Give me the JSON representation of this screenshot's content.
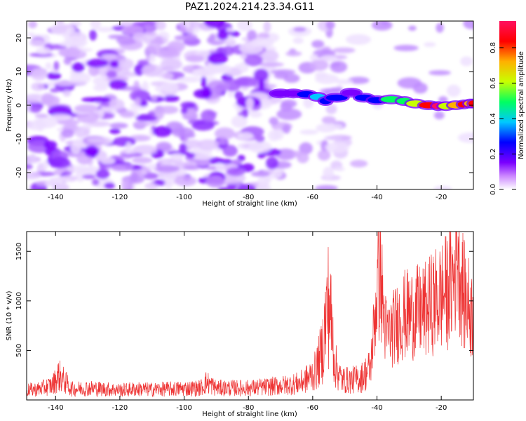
{
  "figure": {
    "title": "PAZ1.2024.214.23.34.G11"
  },
  "chart_data": [
    {
      "type": "heatmap",
      "xlabel": "Height of straight line (km)",
      "ylabel": "Frequency (Hz)",
      "xlim": [
        -149,
        -10
      ],
      "ylim": [
        -25,
        25
      ],
      "xticks": [
        -140,
        -120,
        -100,
        -80,
        -60,
        -40,
        -20
      ],
      "yticks": [
        -20,
        -10,
        0,
        10,
        20
      ],
      "colorbar": {
        "label": "Normalized spectral amplitude",
        "range": [
          0,
          0.95
        ],
        "ticks": [
          0.0,
          0.2,
          0.4,
          0.6,
          0.8
        ],
        "colors": [
          "#ffffff",
          "#cc88ff",
          "#7a00ff",
          "#0000ff",
          "#00c8ff",
          "#00ff60",
          "#c8ff00",
          "#ffb000",
          "#ff0000",
          "#ff1060"
        ]
      },
      "ridge": [
        {
          "x": -72,
          "y": 3.5,
          "amp": 0.2
        },
        {
          "x": -68,
          "y": 3.5,
          "amp": 0.25
        },
        {
          "x": -64,
          "y": 3.5,
          "amp": 0.3
        },
        {
          "x": -60,
          "y": 3.0,
          "amp": 0.4
        },
        {
          "x": -57,
          "y": 2.0,
          "amp": 0.35
        },
        {
          "x": -55,
          "y": 0.5,
          "amp": 0.3
        },
        {
          "x": -50,
          "y": 4.0,
          "amp": 0.2
        },
        {
          "x": -46,
          "y": 3.5,
          "amp": 0.35
        },
        {
          "x": -42,
          "y": 1.0,
          "amp": 0.3
        },
        {
          "x": -38,
          "y": 2.0,
          "amp": 0.5
        },
        {
          "x": -33,
          "y": 1.5,
          "amp": 0.55
        },
        {
          "x": -30,
          "y": 1.0,
          "amp": 0.6
        },
        {
          "x": -26,
          "y": 0.0,
          "amp": 0.8
        },
        {
          "x": -22,
          "y": 0.0,
          "amp": 0.9
        },
        {
          "x": -20,
          "y": -0.5,
          "amp": 0.6
        },
        {
          "x": -17,
          "y": 0.0,
          "amp": 0.7
        },
        {
          "x": -14,
          "y": 0.0,
          "amp": 0.8
        },
        {
          "x": -12,
          "y": 0.5,
          "amp": 0.75
        },
        {
          "x": -10,
          "y": 0.5,
          "amp": 0.8
        }
      ]
    },
    {
      "type": "line",
      "xlabel": "Height of straight line (km)",
      "ylabel": "SNR (10 * v/v)",
      "xlim": [
        -149,
        -10
      ],
      "ylim": [
        0,
        1700
      ],
      "xticks": [
        -140,
        -120,
        -100,
        -80,
        -60,
        -40,
        -20
      ],
      "yticks": [
        500,
        1000,
        1500
      ],
      "color": "#ee3333",
      "series": [
        {
          "x": [
            -149,
            -145,
            -141,
            -139,
            -135,
            -130,
            -125,
            -120,
            -115,
            -110,
            -105,
            -100,
            -95,
            -93,
            -90,
            -85,
            -80,
            -75,
            -72,
            -68,
            -64,
            -61,
            -59,
            -57,
            -56,
            -55,
            -54,
            -53,
            -51,
            -48,
            -45,
            -42,
            -41,
            -40,
            -39,
            -38,
            -37,
            -35,
            -32,
            -28,
            -25,
            -22,
            -20,
            -18,
            -16,
            -15,
            -14,
            -13,
            -12,
            -11,
            -10
          ],
          "y": [
            100,
            110,
            150,
            250,
            110,
            120,
            110,
            100,
            110,
            105,
            110,
            115,
            120,
            180,
            120,
            120,
            120,
            130,
            140,
            150,
            170,
            230,
            300,
            500,
            800,
            1000,
            700,
            350,
            200,
            200,
            220,
            320,
            700,
            1100,
            1300,
            900,
            650,
            720,
            850,
            880,
            900,
            1000,
            1050,
            1100,
            1250,
            1650,
            1300,
            1050,
            1000,
            900,
            850
          ]
        }
      ]
    }
  ]
}
